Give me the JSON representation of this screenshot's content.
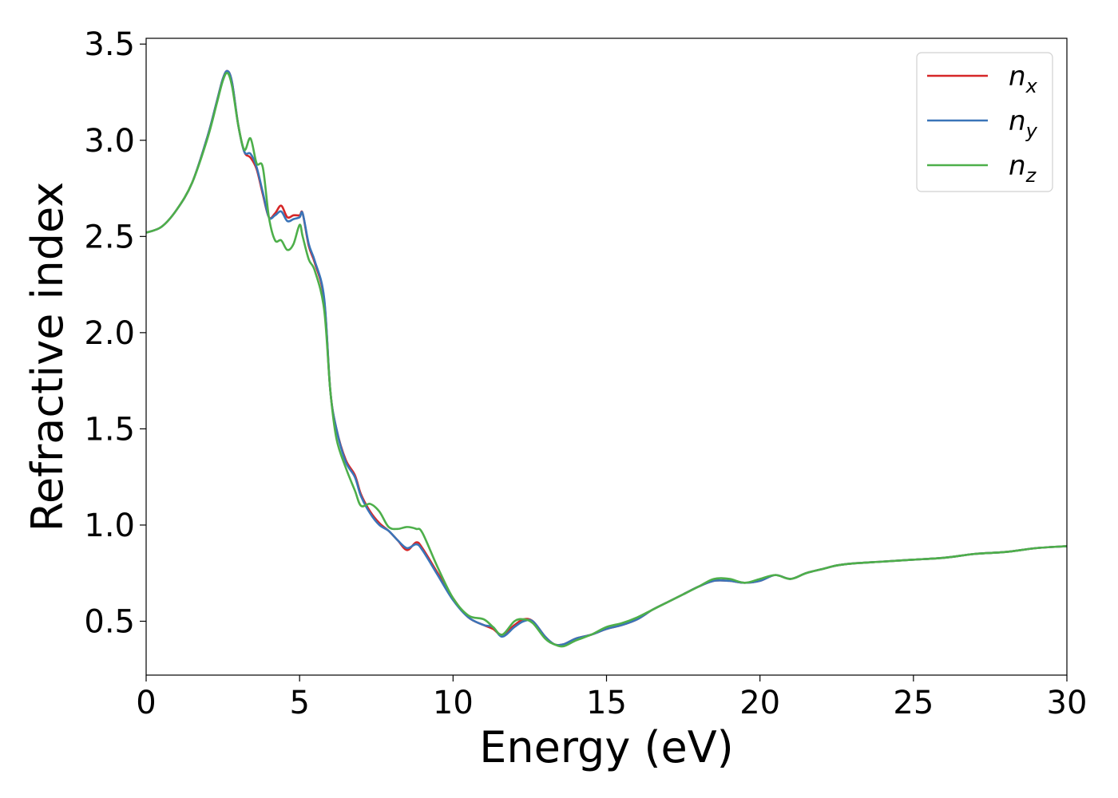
{
  "chart_data": {
    "type": "line",
    "xlabel": "Energy (eV)",
    "ylabel": "Refractive index",
    "xlim": [
      0,
      30
    ],
    "ylim": [
      0.22,
      3.53
    ],
    "xticks": [
      "0",
      "5",
      "10",
      "15",
      "20",
      "25",
      "30"
    ],
    "yticks": [
      "0.5",
      "1.0",
      "1.5",
      "2.0",
      "2.5",
      "3.0",
      "3.5"
    ],
    "grid": false,
    "legend_position": "top-right",
    "series": [
      {
        "name": "n_x",
        "legend": {
          "base": "n",
          "sub": "x"
        },
        "color": "#d62728",
        "x": [
          0,
          0.5,
          1,
          1.5,
          2,
          2.3,
          2.5,
          2.65,
          2.8,
          3.0,
          3.2,
          3.4,
          3.6,
          3.8,
          4.0,
          4.2,
          4.4,
          4.6,
          4.8,
          5.0,
          5.1,
          5.3,
          5.5,
          5.8,
          6.0,
          6.2,
          6.5,
          6.8,
          7.0,
          7.3,
          7.6,
          7.9,
          8.2,
          8.5,
          8.8,
          9.0,
          9.5,
          10.0,
          10.5,
          11.0,
          11.3,
          11.6,
          12.0,
          12.3,
          12.6,
          13.0,
          13.3,
          13.6,
          14.0,
          14.5,
          15.0,
          15.5,
          16.0,
          16.5,
          17.0,
          17.5,
          18.0,
          18.5,
          19.0,
          19.5,
          20.0,
          20.5,
          21.0,
          21.5,
          22.0,
          22.5,
          23.0,
          24.0,
          25.0,
          26.0,
          27.0,
          28.0,
          29.0,
          30.0
        ],
        "y": [
          2.52,
          2.55,
          2.64,
          2.78,
          3.02,
          3.2,
          3.32,
          3.36,
          3.3,
          3.08,
          2.94,
          2.91,
          2.85,
          2.72,
          2.6,
          2.62,
          2.66,
          2.6,
          2.61,
          2.61,
          2.62,
          2.45,
          2.36,
          2.17,
          1.7,
          1.5,
          1.34,
          1.26,
          1.16,
          1.07,
          1.01,
          0.97,
          0.92,
          0.87,
          0.91,
          0.88,
          0.75,
          0.62,
          0.52,
          0.48,
          0.46,
          0.43,
          0.48,
          0.51,
          0.5,
          0.42,
          0.38,
          0.38,
          0.41,
          0.43,
          0.46,
          0.48,
          0.51,
          0.56,
          0.6,
          0.64,
          0.68,
          0.71,
          0.71,
          0.7,
          0.71,
          0.74,
          0.72,
          0.75,
          0.77,
          0.79,
          0.8,
          0.81,
          0.82,
          0.83,
          0.85,
          0.86,
          0.88,
          0.89
        ]
      },
      {
        "name": "n_y",
        "legend": {
          "base": "n",
          "sub": "y"
        },
        "color": "#3a74b8",
        "x": [
          0,
          0.5,
          1,
          1.5,
          2,
          2.3,
          2.5,
          2.65,
          2.8,
          3.0,
          3.2,
          3.4,
          3.6,
          3.8,
          4.0,
          4.2,
          4.4,
          4.6,
          4.8,
          5.0,
          5.1,
          5.3,
          5.5,
          5.8,
          6.0,
          6.2,
          6.5,
          6.8,
          7.0,
          7.3,
          7.6,
          7.9,
          8.2,
          8.5,
          8.8,
          9.0,
          9.5,
          10.0,
          10.5,
          11.0,
          11.3,
          11.6,
          12.0,
          12.3,
          12.6,
          13.0,
          13.3,
          13.6,
          14.0,
          14.5,
          15.0,
          15.5,
          16.0,
          16.5,
          17.0,
          17.5,
          18.0,
          18.5,
          19.0,
          19.5,
          20.0,
          20.5,
          21.0,
          21.5,
          22.0,
          22.5,
          23.0,
          24.0,
          25.0,
          26.0,
          27.0,
          28.0,
          29.0,
          30.0
        ],
        "y": [
          2.52,
          2.55,
          2.64,
          2.78,
          3.02,
          3.2,
          3.32,
          3.36,
          3.3,
          3.08,
          2.94,
          2.93,
          2.86,
          2.73,
          2.6,
          2.61,
          2.63,
          2.58,
          2.59,
          2.6,
          2.62,
          2.46,
          2.37,
          2.18,
          1.7,
          1.5,
          1.33,
          1.25,
          1.15,
          1.06,
          1.0,
          0.97,
          0.92,
          0.88,
          0.9,
          0.87,
          0.74,
          0.61,
          0.52,
          0.48,
          0.47,
          0.42,
          0.47,
          0.5,
          0.5,
          0.42,
          0.38,
          0.38,
          0.41,
          0.43,
          0.46,
          0.48,
          0.51,
          0.56,
          0.6,
          0.64,
          0.68,
          0.71,
          0.71,
          0.7,
          0.71,
          0.74,
          0.72,
          0.75,
          0.77,
          0.79,
          0.8,
          0.81,
          0.82,
          0.83,
          0.85,
          0.86,
          0.88,
          0.89
        ]
      },
      {
        "name": "n_z",
        "legend": {
          "base": "n",
          "sub": "z"
        },
        "color": "#4daf4a",
        "x": [
          0,
          0.5,
          1,
          1.5,
          2,
          2.3,
          2.5,
          2.65,
          2.8,
          3.0,
          3.2,
          3.4,
          3.6,
          3.8,
          4.0,
          4.2,
          4.4,
          4.6,
          4.8,
          5.0,
          5.1,
          5.3,
          5.5,
          5.8,
          6.0,
          6.2,
          6.5,
          6.8,
          7.0,
          7.3,
          7.6,
          7.9,
          8.2,
          8.5,
          8.8,
          9.0,
          9.5,
          10.0,
          10.5,
          11.0,
          11.3,
          11.6,
          12.0,
          12.3,
          12.6,
          13.0,
          13.3,
          13.6,
          14.0,
          14.5,
          15.0,
          15.5,
          16.0,
          16.5,
          17.0,
          17.5,
          18.0,
          18.5,
          19.0,
          19.5,
          20.0,
          20.5,
          21.0,
          21.5,
          22.0,
          22.5,
          23.0,
          24.0,
          25.0,
          26.0,
          27.0,
          28.0,
          29.0,
          30.0
        ],
        "y": [
          2.52,
          2.55,
          2.64,
          2.78,
          3.01,
          3.19,
          3.31,
          3.35,
          3.28,
          3.08,
          2.95,
          3.01,
          2.88,
          2.86,
          2.6,
          2.48,
          2.48,
          2.43,
          2.46,
          2.56,
          2.5,
          2.38,
          2.32,
          2.12,
          1.7,
          1.45,
          1.3,
          1.18,
          1.1,
          1.11,
          1.07,
          0.99,
          0.98,
          0.99,
          0.98,
          0.96,
          0.78,
          0.62,
          0.53,
          0.51,
          0.47,
          0.43,
          0.5,
          0.51,
          0.49,
          0.41,
          0.38,
          0.37,
          0.4,
          0.43,
          0.47,
          0.49,
          0.52,
          0.56,
          0.6,
          0.64,
          0.68,
          0.72,
          0.72,
          0.7,
          0.72,
          0.74,
          0.72,
          0.75,
          0.77,
          0.79,
          0.8,
          0.81,
          0.82,
          0.83,
          0.85,
          0.86,
          0.88,
          0.89
        ]
      }
    ]
  }
}
